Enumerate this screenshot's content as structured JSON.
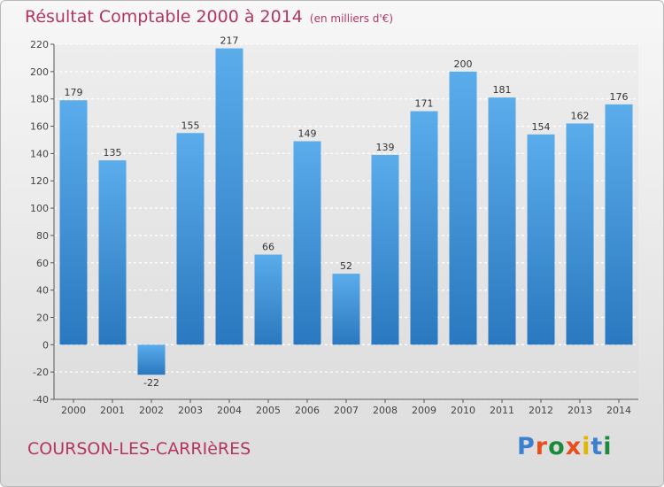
{
  "header": {
    "title": "Résultat Comptable 2000 à 2014",
    "unit": "(en milliers d'€)"
  },
  "footer": {
    "commune": "COURSON-LES-CARRIèRES",
    "logo": "Proxiti",
    "logo_colors": [
      "#3a7fd0",
      "#e94e1b",
      "#1d8a3b",
      "#e94e1b",
      "#e2b600",
      "#3a7fd0",
      "#1d8a3b"
    ]
  },
  "chart_data": {
    "type": "bar",
    "categories": [
      "2000",
      "2001",
      "2002",
      "2003",
      "2004",
      "2005",
      "2006",
      "2007",
      "2008",
      "2009",
      "2010",
      "2011",
      "2012",
      "2013",
      "2014"
    ],
    "values": [
      179,
      135,
      -22,
      155,
      217,
      66,
      149,
      52,
      139,
      171,
      200,
      181,
      154,
      162,
      176
    ],
    "ylim": [
      -40,
      220
    ],
    "yticks": [
      -40,
      -20,
      0,
      20,
      40,
      60,
      80,
      100,
      120,
      140,
      160,
      180,
      200,
      220
    ],
    "grid": true,
    "bar_color": "#3d93d8"
  }
}
